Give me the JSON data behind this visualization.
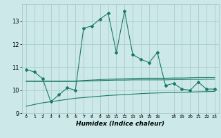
{
  "xlabel": "Humidex (Indice chaleur)",
  "background_color": "#cce8e8",
  "grid_color": "#aacccc",
  "line_color": "#1a7a6a",
  "x_main": [
    0,
    1,
    2,
    3,
    4,
    5,
    6,
    7,
    8,
    9,
    10,
    11,
    12,
    13,
    14,
    15,
    16,
    17,
    18,
    19,
    20,
    21,
    22,
    23
  ],
  "y_main": [
    10.9,
    10.8,
    10.5,
    9.5,
    9.8,
    10.1,
    10.0,
    12.7,
    12.8,
    13.1,
    13.35,
    11.65,
    13.45,
    11.55,
    11.35,
    11.2,
    11.65,
    10.2,
    10.3,
    10.05,
    10.0,
    10.35,
    10.05,
    10.05
  ],
  "y_line_upper": [
    10.4,
    10.4,
    10.4,
    10.4,
    10.4,
    10.4,
    10.4,
    10.42,
    10.44,
    10.46,
    10.48,
    10.49,
    10.5,
    10.51,
    10.52,
    10.52,
    10.52,
    10.52,
    10.53,
    10.53,
    10.54,
    10.55,
    10.55,
    10.55
  ],
  "y_line_mid": [
    10.38,
    10.38,
    10.38,
    10.38,
    10.38,
    10.38,
    10.38,
    10.4,
    10.41,
    10.42,
    10.43,
    10.44,
    10.44,
    10.45,
    10.45,
    10.45,
    10.45,
    10.45,
    10.46,
    10.46,
    10.47,
    10.47,
    10.48,
    10.48
  ],
  "y_line_lower": [
    9.3,
    9.38,
    9.45,
    9.5,
    9.55,
    9.6,
    9.65,
    9.68,
    9.71,
    9.74,
    9.77,
    9.79,
    9.81,
    9.83,
    9.85,
    9.87,
    9.88,
    9.89,
    9.9,
    9.91,
    9.92,
    9.93,
    9.94,
    9.95
  ],
  "ylim": [
    9.0,
    13.75
  ],
  "xlim": [
    -0.5,
    23.5
  ],
  "yticks": [
    9,
    10,
    11,
    12,
    13
  ],
  "xtick_positions": [
    0,
    1,
    2,
    3,
    4,
    5,
    6,
    7,
    8,
    9,
    10,
    11,
    12,
    13,
    14,
    15,
    16,
    18,
    19,
    20,
    21,
    22,
    23
  ],
  "xtick_labels": [
    "0",
    "1",
    "2",
    "3",
    "4",
    "5",
    "6",
    "7",
    "8",
    "9",
    "10",
    "11",
    "12",
    "13",
    "14",
    "15",
    "16",
    "18",
    "19",
    "20",
    "21",
    "22",
    "23"
  ]
}
